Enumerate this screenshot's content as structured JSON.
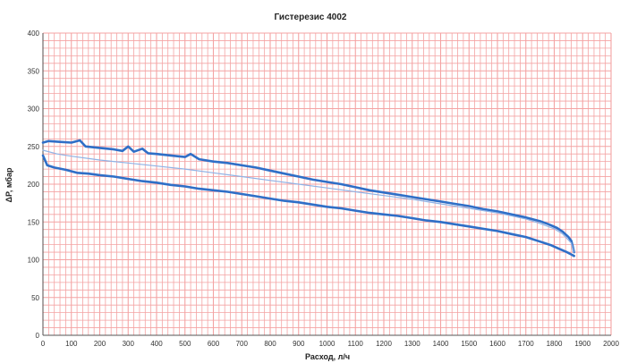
{
  "chart_data": {
    "type": "line",
    "title": "Гистерезис 4002",
    "xlabel": "Расход, л/ч",
    "ylabel": "ΔP, мбар",
    "xlim": [
      0,
      2000
    ],
    "ylim": [
      0,
      400
    ],
    "x_ticks": [
      0,
      100,
      200,
      300,
      400,
      500,
      600,
      700,
      800,
      900,
      1000,
      1100,
      1200,
      1300,
      1400,
      1500,
      1600,
      1700,
      1800,
      1900,
      2000
    ],
    "y_ticks": [
      0,
      50,
      100,
      150,
      200,
      250,
      300,
      350,
      400
    ],
    "grid": true,
    "legend": "none",
    "colors": {
      "grid": "#f4a3a3",
      "series_outer": "#2f6fc7",
      "series_inner": "#8fb3e6",
      "plot_bg": "#ffffff"
    },
    "series": [
      {
        "role": "upper",
        "x": [
          0,
          20,
          60,
          100,
          130,
          150,
          200,
          250,
          280,
          300,
          320,
          350,
          370,
          400,
          450,
          500,
          520,
          550,
          600,
          650,
          700,
          750,
          800,
          850,
          900,
          950,
          1000,
          1050,
          1100,
          1150,
          1200,
          1250,
          1300,
          1350,
          1400,
          1450,
          1500,
          1550,
          1600,
          1650,
          1700,
          1750,
          1780,
          1810,
          1830,
          1850,
          1860,
          1865,
          1870
        ],
        "y": [
          255,
          257,
          256,
          255,
          258,
          250,
          248,
          246,
          244,
          250,
          243,
          247,
          241,
          240,
          238,
          236,
          240,
          233,
          230,
          228,
          225,
          222,
          218,
          214,
          210,
          206,
          203,
          200,
          196,
          192,
          189,
          186,
          183,
          180,
          177,
          174,
          171,
          167,
          164,
          160,
          156,
          151,
          147,
          142,
          137,
          130,
          125,
          118,
          110
        ]
      },
      {
        "role": "middle",
        "x": [
          0,
          50,
          100,
          200,
          300,
          400,
          500,
          600,
          700,
          800,
          900,
          1000,
          1100,
          1200,
          1300,
          1400,
          1500,
          1600,
          1700,
          1750,
          1800,
          1830,
          1860,
          1870
        ],
        "y": [
          245,
          240,
          237,
          232,
          228,
          224,
          220,
          215,
          210,
          205,
          200,
          195,
          190,
          185,
          180,
          174,
          168,
          162,
          154,
          148,
          141,
          134,
          122,
          110
        ]
      },
      {
        "role": "lower",
        "x": [
          0,
          15,
          40,
          80,
          120,
          160,
          200,
          250,
          300,
          350,
          400,
          450,
          500,
          550,
          600,
          650,
          700,
          750,
          800,
          850,
          900,
          950,
          1000,
          1050,
          1100,
          1150,
          1200,
          1250,
          1300,
          1350,
          1400,
          1450,
          1500,
          1550,
          1600,
          1650,
          1700,
          1750,
          1790,
          1820,
          1845,
          1860,
          1870
        ],
        "y": [
          238,
          225,
          222,
          219,
          215,
          214,
          212,
          210,
          207,
          204,
          202,
          199,
          197,
          194,
          192,
          190,
          187,
          184,
          181,
          178,
          176,
          173,
          170,
          168,
          165,
          162,
          160,
          158,
          155,
          152,
          150,
          147,
          144,
          141,
          138,
          134,
          130,
          124,
          119,
          114,
          110,
          107,
          105
        ]
      }
    ]
  }
}
